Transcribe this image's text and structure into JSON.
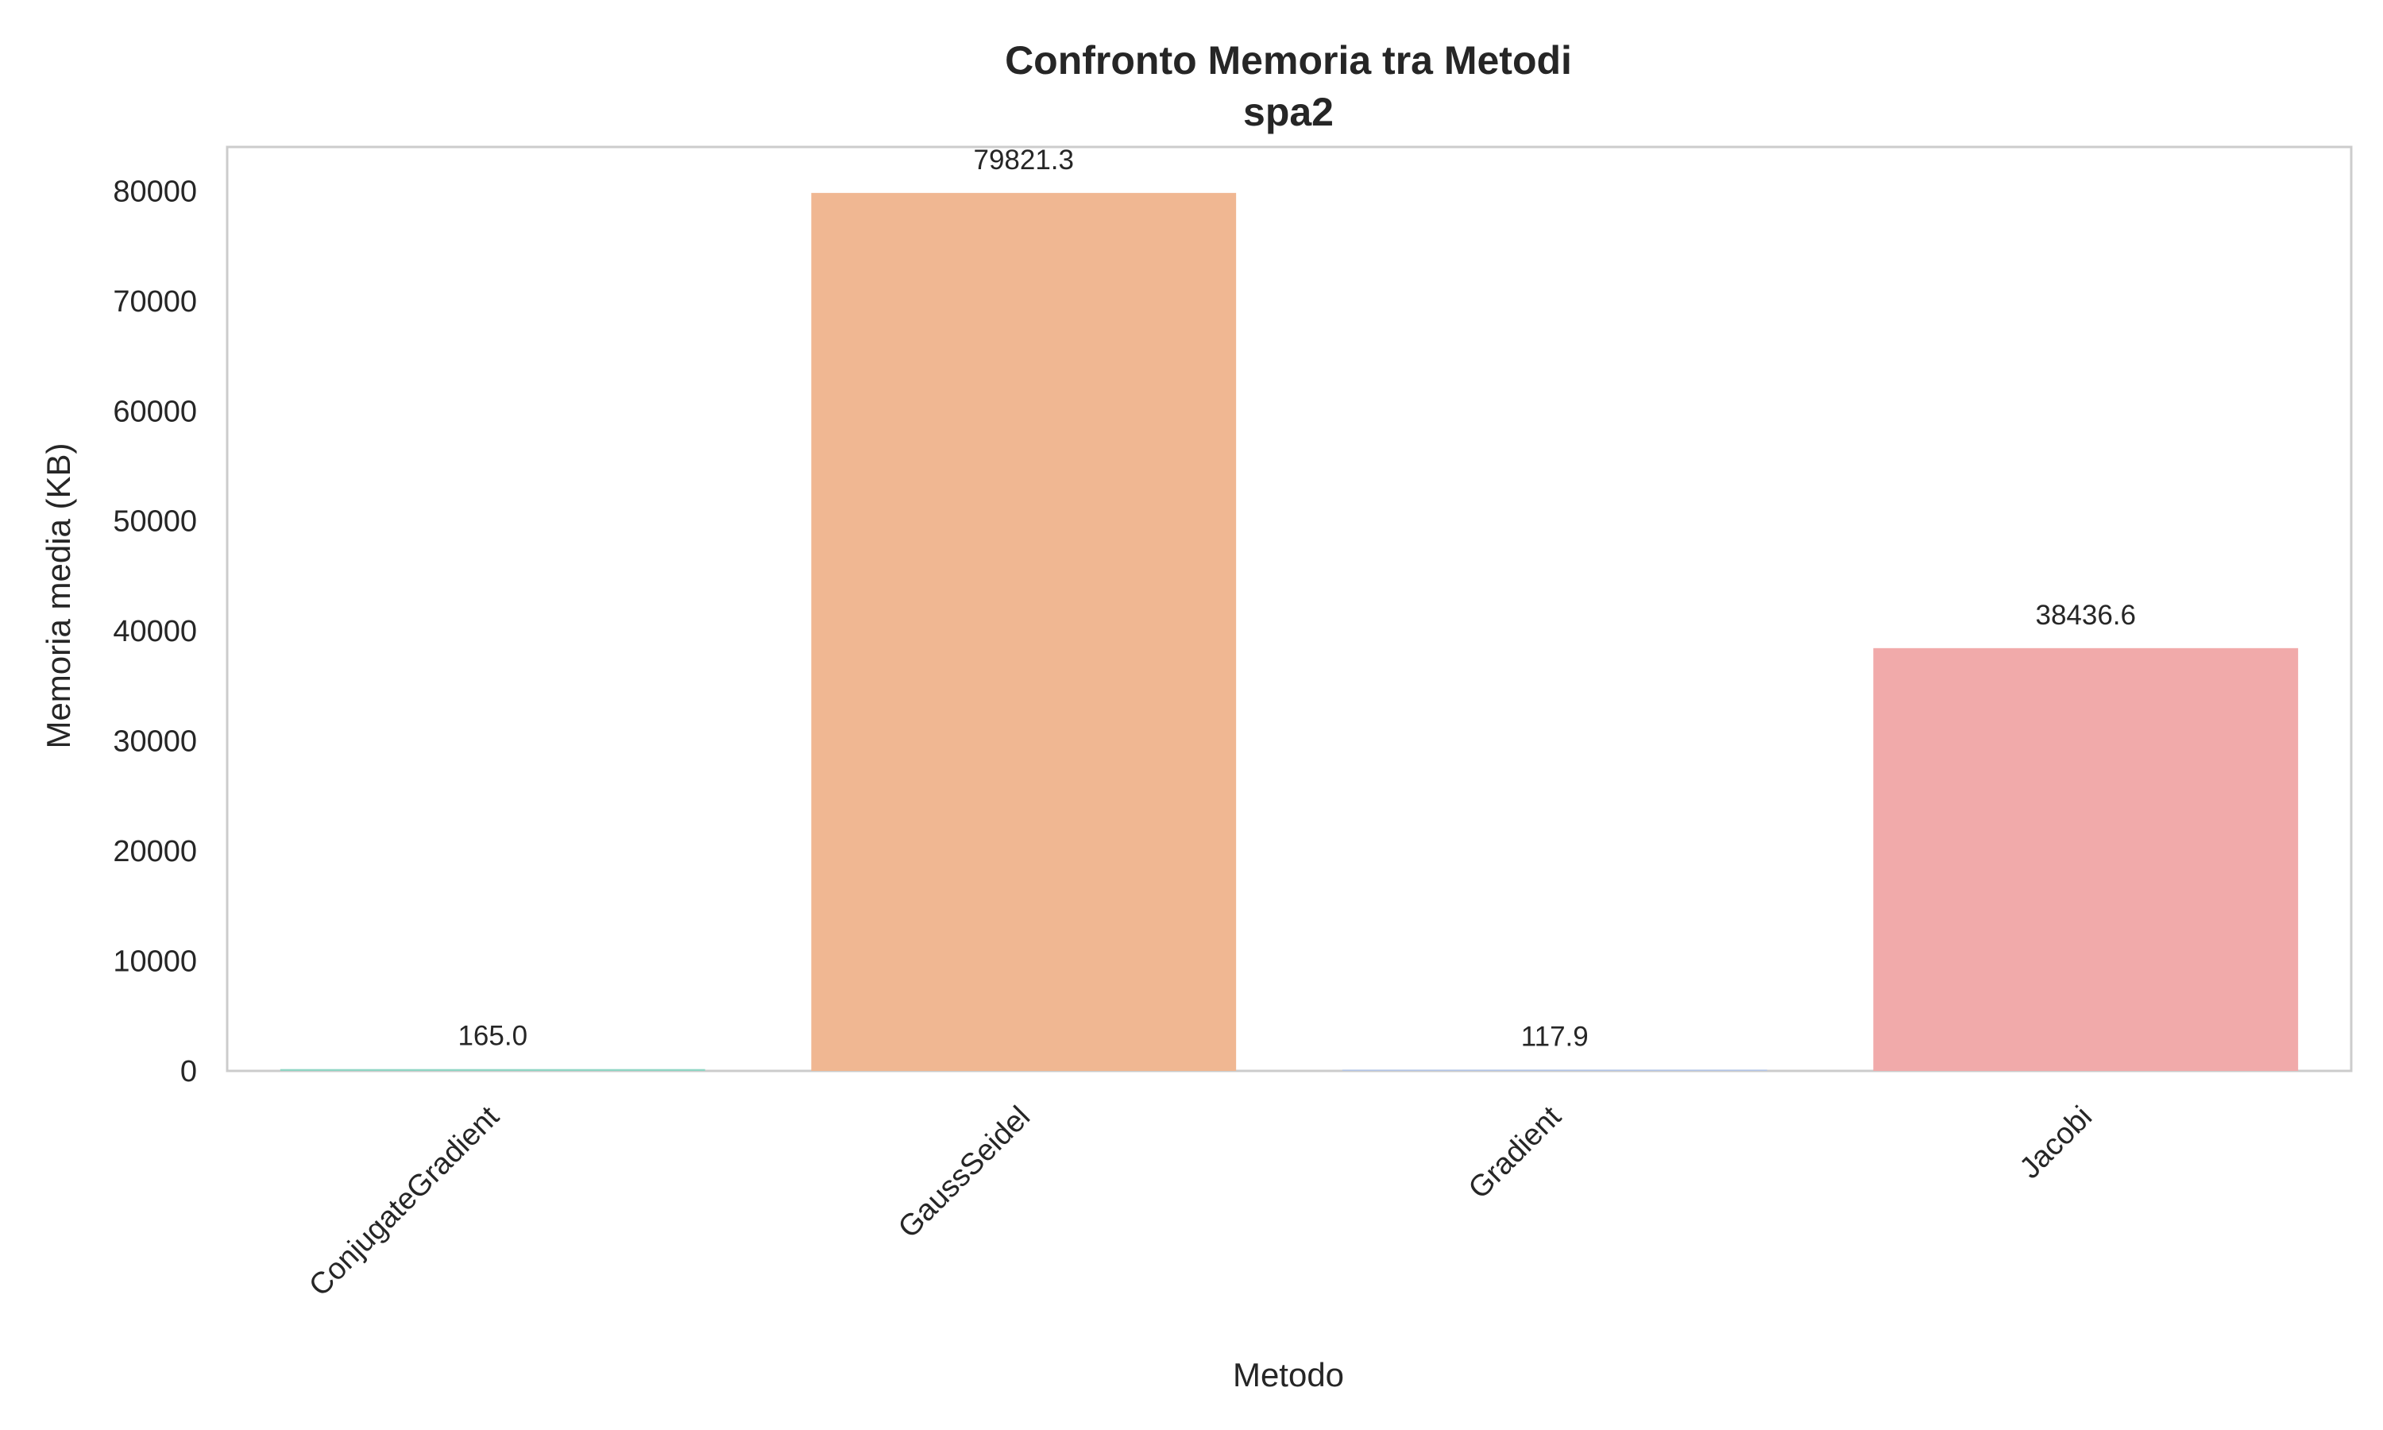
{
  "chart_data": {
    "type": "bar",
    "title": "Confronto Memoria tra Metodi",
    "subtitle": "spa2",
    "xlabel": "Metodo",
    "ylabel": "Memoria media (KB)",
    "categories": [
      "ConjugateGradient",
      "GaussSeidel",
      "Gradient",
      "Jacobi"
    ],
    "values": [
      165.0,
      79821.3,
      117.9,
      38436.6
    ],
    "value_labels": [
      "165.0",
      "79821.3",
      "117.9",
      "38436.6"
    ],
    "colors": [
      "#8fd6c4",
      "#f0b792",
      "#b3c5e6",
      "#f1aaaa"
    ],
    "ylim": [
      0,
      84000
    ],
    "yticks": [
      0,
      10000,
      20000,
      30000,
      40000,
      50000,
      60000,
      70000,
      80000
    ],
    "ytick_labels": [
      "0",
      "10000",
      "20000",
      "30000",
      "40000",
      "50000",
      "60000",
      "70000",
      "80000"
    ],
    "grid": false,
    "legend": "none",
    "frame_color": "#cccccc"
  }
}
